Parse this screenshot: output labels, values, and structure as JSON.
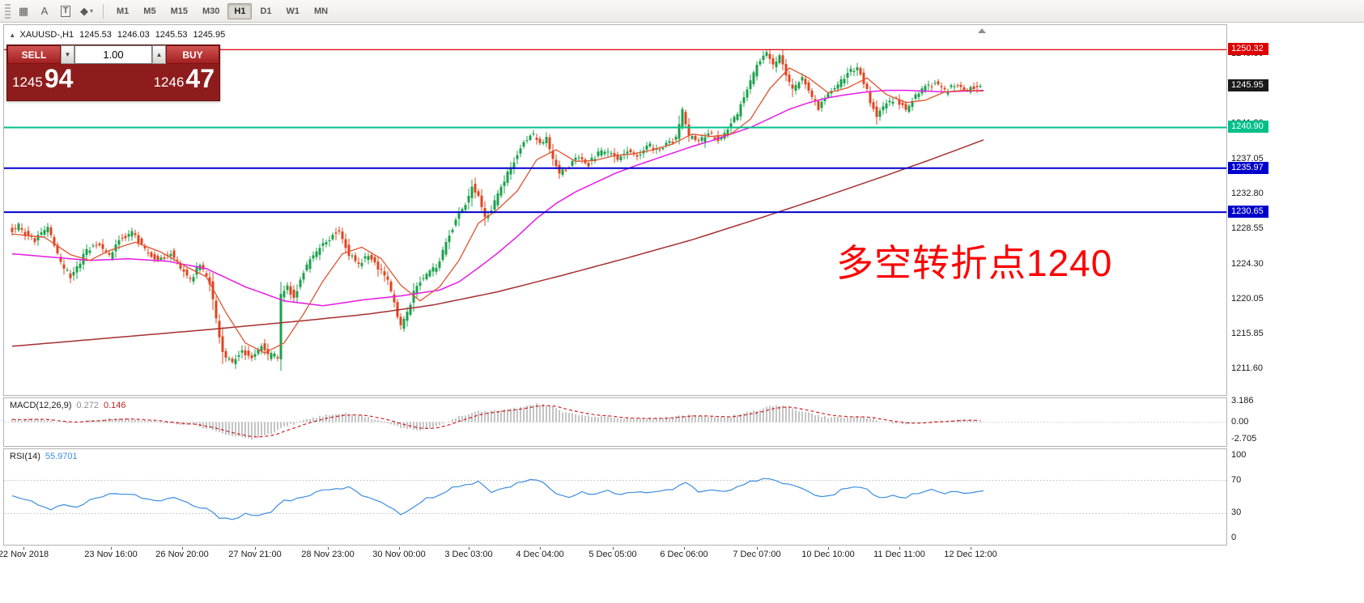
{
  "app": {
    "name": "MetaTrader Chart Window"
  },
  "toolbar": {
    "tool_icons": [
      {
        "name": "crosshair-icon",
        "glyph": "▦",
        "caret": false,
        "boxed": false
      },
      {
        "name": "cursor-tool-icon",
        "glyph": "A",
        "caret": false,
        "boxed": false
      },
      {
        "name": "text-tool-icon",
        "glyph": "T",
        "caret": false,
        "boxed": true
      },
      {
        "name": "shapes-tool-icon",
        "glyph": "◆",
        "caret": true,
        "boxed": false
      }
    ],
    "timeframes": [
      "M1",
      "M5",
      "M15",
      "M30",
      "H1",
      "D1",
      "W1",
      "MN"
    ],
    "active_timeframe": "H1"
  },
  "chart_header": {
    "symbol": "XAUUSD-,H1",
    "open": "1245.53",
    "high": "1246.03",
    "low": "1245.53",
    "close": "1245.95"
  },
  "trade_panel": {
    "sell_label": "SELL",
    "buy_label": "BUY",
    "volume": "1.00",
    "sell_price_main": "1245",
    "sell_price_pips": "94",
    "buy_price_main": "1246",
    "buy_price_pips": "47"
  },
  "indicators": {
    "macd": {
      "title": "MACD(12,26,9)",
      "value_main": "0.272",
      "value_signal": "0.146",
      "axis_labels": [
        {
          "value": 3.186,
          "label": "3.186"
        },
        {
          "value": 0,
          "label": "0.00"
        },
        {
          "value": -2.705,
          "label": "-2.705"
        }
      ]
    },
    "rsi": {
      "title": "RSI(14)",
      "value": "55.9701",
      "axis_labels": [
        {
          "value": 100,
          "label": "100"
        },
        {
          "value": 70,
          "label": "70"
        },
        {
          "value": 30,
          "label": "30"
        },
        {
          "value": 0,
          "label": "0"
        }
      ]
    }
  },
  "chart_data": {
    "type": "candlestick",
    "symbol": "XAUUSD-",
    "timeframe": "H1",
    "candle_count": 300,
    "price_axis": {
      "view_max": 1253.3,
      "view_min": 1208.5,
      "ticks": [
        1249.8,
        1245.55,
        1241.3,
        1237.05,
        1232.8,
        1228.55,
        1224.3,
        1220.05,
        1215.85,
        1211.6
      ]
    },
    "levels": [
      {
        "price": 1250.32,
        "label": "1250.32",
        "color": "#dd0000",
        "line": true,
        "line_width": 1.3
      },
      {
        "price": 1245.95,
        "label": "1245.95",
        "color": "#1a1a1a",
        "line": false,
        "line_width": 0
      },
      {
        "price": 1240.9,
        "label": "1240.90",
        "color": "#00c08a",
        "line": true,
        "line_width": 2
      },
      {
        "price": 1235.97,
        "label": "1235.97",
        "color": "#0000cc",
        "line": true,
        "line_width": 2
      },
      {
        "price": 1230.65,
        "label": "1230.65",
        "color": "#0000cc",
        "line": true,
        "line_width": 2
      }
    ],
    "colors": {
      "up": "#1ca04c",
      "down": "#e1441f",
      "ma_fast": "#e0532e",
      "ma_mid": "#e61ae6",
      "ma_slow": "#a52f2f",
      "macd_hist": "#c4c4c4",
      "macd_signal": "#cc2222",
      "rsi_line": "#3d8de0"
    },
    "annotation": {
      "text": "多空转折点1240",
      "color": "#ff0000"
    },
    "x_labels": [
      "22 Nov 2018",
      "23 Nov 16:00",
      "26 Nov 20:00",
      "27 Nov 21:00",
      "28 Nov 23:00",
      "30 Nov 00:00",
      "3 Dec 03:00",
      "4 Dec 04:00",
      "5 Dec 05:00",
      "6 Dec 06:00",
      "7 Dec 07:00",
      "10 Dec 10:00",
      "11 Dec 11:00",
      "12 Dec 12:00"
    ],
    "x_label_indices": [
      3.5,
      30.5,
      52.5,
      75,
      97.5,
      119.5,
      141,
      163,
      185.5,
      207.5,
      230,
      252,
      274,
      296
    ],
    "price_path": [
      [
        0,
        1228.4
      ],
      [
        3,
        1228.9
      ],
      [
        6,
        1227.6
      ],
      [
        8,
        1227.2
      ],
      [
        10,
        1228.2
      ],
      [
        12,
        1228.6
      ],
      [
        14,
        1226.6
      ],
      [
        16,
        1224.5
      ],
      [
        19,
        1222.8
      ],
      [
        22,
        1224.6
      ],
      [
        24,
        1226.0
      ],
      [
        28,
        1226.8
      ],
      [
        31,
        1225.2
      ],
      [
        34,
        1227.3
      ],
      [
        38,
        1228.3
      ],
      [
        42,
        1226.0
      ],
      [
        46,
        1224.8
      ],
      [
        50,
        1225.8
      ],
      [
        53,
        1224.0
      ],
      [
        56,
        1222.5
      ],
      [
        59,
        1224.3
      ],
      [
        62,
        1222.0
      ],
      [
        64,
        1217.5
      ],
      [
        66,
        1213.5
      ],
      [
        69,
        1212.4
      ],
      [
        72,
        1214.0
      ],
      [
        75,
        1213.0
      ],
      [
        78,
        1214.5
      ],
      [
        80,
        1213.2
      ],
      [
        82,
        1213.4
      ],
      [
        83,
        1212.6
      ],
      [
        84,
        1220.5
      ],
      [
        86,
        1221.5
      ],
      [
        88,
        1220.3
      ],
      [
        90,
        1222.5
      ],
      [
        93,
        1224.8
      ],
      [
        96,
        1226.3
      ],
      [
        99,
        1227.5
      ],
      [
        102,
        1228.6
      ],
      [
        105,
        1225.5
      ],
      [
        108,
        1224.3
      ],
      [
        111,
        1225.6
      ],
      [
        114,
        1224.0
      ],
      [
        117,
        1222.3
      ],
      [
        119,
        1219.5
      ],
      [
        121,
        1216.8
      ],
      [
        123,
        1218.5
      ],
      [
        125,
        1221.0
      ],
      [
        127,
        1222.4
      ],
      [
        130,
        1223.3
      ],
      [
        133,
        1224.6
      ],
      [
        136,
        1228.0
      ],
      [
        139,
        1230.5
      ],
      [
        141,
        1231.5
      ],
      [
        143,
        1233.8
      ],
      [
        145,
        1232.3
      ],
      [
        147,
        1230.0
      ],
      [
        150,
        1231.8
      ],
      [
        153,
        1234.5
      ],
      [
        156,
        1237.0
      ],
      [
        159,
        1239.2
      ],
      [
        162,
        1240.0
      ],
      [
        164,
        1238.8
      ],
      [
        166,
        1239.8
      ],
      [
        168,
        1237.0
      ],
      [
        170,
        1235.5
      ],
      [
        173,
        1236.3
      ],
      [
        176,
        1237.6
      ],
      [
        179,
        1236.5
      ],
      [
        182,
        1237.8
      ],
      [
        185,
        1238.0
      ],
      [
        188,
        1237.0
      ],
      [
        191,
        1238.2
      ],
      [
        194,
        1237.3
      ],
      [
        197,
        1238.8
      ],
      [
        200,
        1238.3
      ],
      [
        203,
        1239.0
      ],
      [
        206,
        1239.5
      ],
      [
        208,
        1242.8
      ],
      [
        210,
        1239.8
      ],
      [
        213,
        1239.0
      ],
      [
        216,
        1240.2
      ],
      [
        219,
        1239.3
      ],
      [
        222,
        1240.8
      ],
      [
        225,
        1242.5
      ],
      [
        228,
        1245.5
      ],
      [
        231,
        1248.3
      ],
      [
        234,
        1250.0
      ],
      [
        236,
        1248.5
      ],
      [
        238,
        1249.5
      ],
      [
        240,
        1247.0
      ],
      [
        242,
        1245.3
      ],
      [
        245,
        1246.8
      ],
      [
        248,
        1244.5
      ],
      [
        250,
        1243.2
      ],
      [
        253,
        1244.8
      ],
      [
        256,
        1246.0
      ],
      [
        259,
        1247.5
      ],
      [
        262,
        1248.2
      ],
      [
        264,
        1246.5
      ],
      [
        266,
        1244.2
      ],
      [
        268,
        1242.5
      ],
      [
        271,
        1243.8
      ],
      [
        274,
        1244.5
      ],
      [
        277,
        1243.0
      ],
      [
        280,
        1244.8
      ],
      [
        283,
        1245.8
      ],
      [
        286,
        1246.3
      ],
      [
        289,
        1245.2
      ],
      [
        292,
        1246.0
      ],
      [
        295,
        1245.4
      ],
      [
        298,
        1245.7
      ],
      [
        300,
        1245.95
      ]
    ],
    "ma_fast": [
      [
        0,
        1228.0
      ],
      [
        10,
        1227.6
      ],
      [
        18,
        1225.5
      ],
      [
        24,
        1224.8
      ],
      [
        30,
        1226.0
      ],
      [
        38,
        1227.0
      ],
      [
        46,
        1225.8
      ],
      [
        54,
        1224.0
      ],
      [
        60,
        1222.8
      ],
      [
        66,
        1218.5
      ],
      [
        72,
        1214.8
      ],
      [
        78,
        1213.6
      ],
      [
        84,
        1214.8
      ],
      [
        90,
        1218.3
      ],
      [
        96,
        1222.3
      ],
      [
        102,
        1225.6
      ],
      [
        108,
        1226.4
      ],
      [
        114,
        1225.0
      ],
      [
        120,
        1221.8
      ],
      [
        126,
        1219.9
      ],
      [
        132,
        1221.6
      ],
      [
        138,
        1224.8
      ],
      [
        144,
        1229.3
      ],
      [
        150,
        1231.0
      ],
      [
        156,
        1233.2
      ],
      [
        162,
        1237.0
      ],
      [
        168,
        1238.2
      ],
      [
        174,
        1236.8
      ],
      [
        180,
        1236.9
      ],
      [
        186,
        1237.5
      ],
      [
        192,
        1237.7
      ],
      [
        198,
        1238.2
      ],
      [
        204,
        1238.9
      ],
      [
        210,
        1240.1
      ],
      [
        216,
        1239.8
      ],
      [
        222,
        1240.1
      ],
      [
        228,
        1241.9
      ],
      [
        234,
        1245.6
      ],
      [
        240,
        1248.1
      ],
      [
        246,
        1246.9
      ],
      [
        252,
        1245.1
      ],
      [
        258,
        1245.7
      ],
      [
        264,
        1246.9
      ],
      [
        270,
        1244.9
      ],
      [
        276,
        1243.9
      ],
      [
        282,
        1244.2
      ],
      [
        288,
        1245.2
      ],
      [
        294,
        1245.4
      ],
      [
        300,
        1245.3
      ]
    ],
    "ma_mid": [
      [
        0,
        1225.6
      ],
      [
        12,
        1225.2
      ],
      [
        24,
        1224.8
      ],
      [
        36,
        1225.0
      ],
      [
        48,
        1224.7
      ],
      [
        60,
        1223.8
      ],
      [
        72,
        1221.6
      ],
      [
        84,
        1219.9
      ],
      [
        96,
        1219.3
      ],
      [
        108,
        1220.0
      ],
      [
        120,
        1220.5
      ],
      [
        132,
        1221.2
      ],
      [
        138,
        1222.2
      ],
      [
        144,
        1223.9
      ],
      [
        150,
        1225.7
      ],
      [
        156,
        1227.7
      ],
      [
        162,
        1229.9
      ],
      [
        168,
        1231.7
      ],
      [
        174,
        1233.1
      ],
      [
        180,
        1234.2
      ],
      [
        186,
        1235.3
      ],
      [
        192,
        1236.2
      ],
      [
        198,
        1237.0
      ],
      [
        204,
        1237.8
      ],
      [
        210,
        1238.6
      ],
      [
        216,
        1239.3
      ],
      [
        222,
        1240.1
      ],
      [
        228,
        1240.9
      ],
      [
        234,
        1242.0
      ],
      [
        240,
        1243.1
      ],
      [
        246,
        1243.9
      ],
      [
        252,
        1244.5
      ],
      [
        258,
        1244.9
      ],
      [
        264,
        1245.2
      ],
      [
        270,
        1245.4
      ],
      [
        276,
        1245.4
      ],
      [
        282,
        1245.3
      ],
      [
        288,
        1245.2
      ],
      [
        294,
        1245.3
      ],
      [
        300,
        1245.4
      ]
    ],
    "ma_slow": [
      [
        0,
        1214.4
      ],
      [
        30,
        1215.4
      ],
      [
        60,
        1216.4
      ],
      [
        90,
        1217.5
      ],
      [
        110,
        1218.3
      ],
      [
        130,
        1219.4
      ],
      [
        150,
        1221.0
      ],
      [
        170,
        1223.0
      ],
      [
        190,
        1225.1
      ],
      [
        210,
        1227.3
      ],
      [
        230,
        1229.8
      ],
      [
        250,
        1232.4
      ],
      [
        270,
        1235.1
      ],
      [
        285,
        1237.2
      ],
      [
        300,
        1239.4
      ]
    ],
    "macd": {
      "view_max": 3.7,
      "view_min": -3.7,
      "path": [
        [
          0,
          0.3
        ],
        [
          8,
          0.5
        ],
        [
          16,
          -0.2
        ],
        [
          24,
          0.2
        ],
        [
          32,
          0.6
        ],
        [
          40,
          0.3
        ],
        [
          48,
          -0.1
        ],
        [
          56,
          -0.5
        ],
        [
          62,
          -1.2
        ],
        [
          68,
          -2.2
        ],
        [
          74,
          -2.6
        ],
        [
          80,
          -1.8
        ],
        [
          84,
          -0.8
        ],
        [
          90,
          0.3
        ],
        [
          96,
          1.0
        ],
        [
          102,
          1.4
        ],
        [
          108,
          1.0
        ],
        [
          114,
          0.2
        ],
        [
          120,
          -0.9
        ],
        [
          126,
          -1.3
        ],
        [
          132,
          -0.4
        ],
        [
          138,
          0.8
        ],
        [
          144,
          1.7
        ],
        [
          150,
          1.8
        ],
        [
          156,
          2.2
        ],
        [
          162,
          2.8
        ],
        [
          166,
          2.5
        ],
        [
          170,
          1.6
        ],
        [
          176,
          1.0
        ],
        [
          182,
          0.8
        ],
        [
          188,
          0.6
        ],
        [
          194,
          0.5
        ],
        [
          200,
          0.6
        ],
        [
          206,
          1.0
        ],
        [
          210,
          1.1
        ],
        [
          216,
          0.8
        ],
        [
          222,
          0.9
        ],
        [
          228,
          1.6
        ],
        [
          234,
          2.4
        ],
        [
          238,
          2.5
        ],
        [
          242,
          1.9
        ],
        [
          248,
          1.2
        ],
        [
          252,
          0.7
        ],
        [
          258,
          0.7
        ],
        [
          262,
          0.9
        ],
        [
          266,
          0.4
        ],
        [
          270,
          -0.1
        ],
        [
          274,
          -0.2
        ],
        [
          278,
          -0.3
        ],
        [
          282,
          0.0
        ],
        [
          286,
          0.2
        ],
        [
          290,
          0.3
        ],
        [
          300,
          0.27
        ]
      ]
    },
    "rsi": {
      "overbought": 70,
      "oversold": 30,
      "path": [
        [
          0,
          52
        ],
        [
          6,
          45
        ],
        [
          12,
          35
        ],
        [
          16,
          42
        ],
        [
          20,
          38
        ],
        [
          26,
          50
        ],
        [
          32,
          55
        ],
        [
          38,
          52
        ],
        [
          44,
          45
        ],
        [
          50,
          48
        ],
        [
          56,
          40
        ],
        [
          60,
          35
        ],
        [
          64,
          25
        ],
        [
          68,
          22
        ],
        [
          72,
          30
        ],
        [
          76,
          28
        ],
        [
          80,
          33
        ],
        [
          84,
          45
        ],
        [
          88,
          48
        ],
        [
          92,
          52
        ],
        [
          96,
          58
        ],
        [
          100,
          60
        ],
        [
          104,
          62
        ],
        [
          108,
          52
        ],
        [
          112,
          48
        ],
        [
          116,
          40
        ],
        [
          120,
          28
        ],
        [
          124,
          38
        ],
        [
          128,
          48
        ],
        [
          132,
          52
        ],
        [
          136,
          62
        ],
        [
          140,
          65
        ],
        [
          144,
          68
        ],
        [
          148,
          55
        ],
        [
          152,
          60
        ],
        [
          156,
          66
        ],
        [
          160,
          70
        ],
        [
          164,
          68
        ],
        [
          168,
          55
        ],
        [
          172,
          50
        ],
        [
          176,
          55
        ],
        [
          180,
          52
        ],
        [
          184,
          58
        ],
        [
          188,
          52
        ],
        [
          192,
          57
        ],
        [
          196,
          54
        ],
        [
          200,
          58
        ],
        [
          204,
          60
        ],
        [
          208,
          68
        ],
        [
          212,
          56
        ],
        [
          216,
          58
        ],
        [
          220,
          57
        ],
        [
          224,
          62
        ],
        [
          228,
          68
        ],
        [
          232,
          72
        ],
        [
          236,
          70
        ],
        [
          240,
          65
        ],
        [
          244,
          60
        ],
        [
          248,
          52
        ],
        [
          252,
          50
        ],
        [
          256,
          58
        ],
        [
          260,
          63
        ],
        [
          264,
          60
        ],
        [
          268,
          48
        ],
        [
          272,
          52
        ],
        [
          276,
          50
        ],
        [
          280,
          55
        ],
        [
          284,
          58
        ],
        [
          288,
          55
        ],
        [
          292,
          57
        ],
        [
          296,
          54
        ],
        [
          300,
          56
        ]
      ]
    }
  }
}
